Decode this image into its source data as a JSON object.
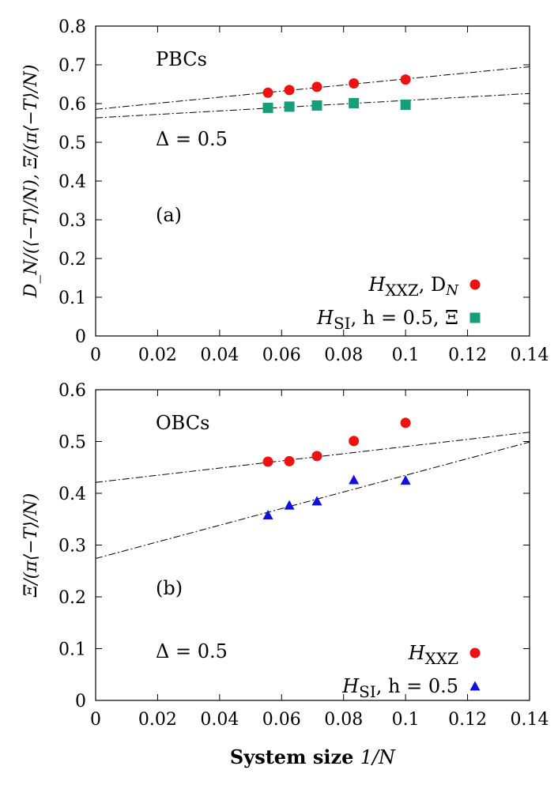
{
  "chart_data": [
    {
      "id": "a",
      "type": "scatter",
      "ylabel": "D_N/(⟨−T⟩/N), Ξ/(π⟨−T⟩/N)",
      "xlim": [
        0,
        0.14
      ],
      "ylim": [
        0,
        0.8
      ],
      "xticks": [
        0,
        0.02,
        0.04,
        0.06,
        0.08,
        0.1,
        0.12,
        0.14
      ],
      "xtick_labels": [
        "0",
        "0.02",
        "0.04",
        "0.06",
        "0.08",
        "0.1",
        "0.12",
        "0.14"
      ],
      "yticks": [
        0,
        0.1,
        0.2,
        0.3,
        0.4,
        0.5,
        0.6,
        0.7,
        0.8
      ],
      "ytick_labels": [
        "0",
        "0.1",
        "0.2",
        "0.3",
        "0.4",
        "0.5",
        "0.6",
        "0.7",
        "0.8"
      ],
      "annotations": [
        "PBCs",
        "Δ = 0.5",
        "(a)"
      ],
      "legend_position": "bottom-right",
      "series": [
        {
          "name": "Ĥ_XXZ, D_N",
          "marker": "circle",
          "color": "#ee1111",
          "x": [
            0.0556,
            0.0625,
            0.0714,
            0.0833,
            0.1
          ],
          "y": [
            0.628,
            0.635,
            0.643,
            0.652,
            0.662
          ]
        },
        {
          "name": "Ĥ_SI, h = 0.5, Ξ",
          "marker": "square",
          "color": "#159e78",
          "x": [
            0.0556,
            0.0625,
            0.0714,
            0.0833,
            0.1
          ],
          "y": [
            0.589,
            0.592,
            0.595,
            0.601,
            0.597
          ]
        }
      ],
      "fits": [
        {
          "x": [
            0,
            0.14
          ],
          "y": [
            0.585,
            0.695
          ]
        },
        {
          "x": [
            0,
            0.14
          ],
          "y": [
            0.563,
            0.626
          ]
        }
      ],
      "legend": {
        "items": [
          {
            "math": "H",
            "sub": "XXZ",
            "tail": ", D",
            "tail_sub": "N"
          },
          {
            "math": "H",
            "sub": "SI",
            "tail": ", h = 0.5, Ξ",
            "tail_sub": ""
          }
        ]
      }
    },
    {
      "id": "b",
      "type": "scatter",
      "xlabel_bold": "System size",
      "xlabel_math": "1/N",
      "ylabel": "Ξ/(π⟨−T⟩/N)",
      "xlim": [
        0,
        0.14
      ],
      "ylim": [
        0,
        0.6
      ],
      "xticks": [
        0,
        0.02,
        0.04,
        0.06,
        0.08,
        0.1,
        0.12,
        0.14
      ],
      "xtick_labels": [
        "0",
        "0.02",
        "0.04",
        "0.06",
        "0.08",
        "0.1",
        "0.12",
        "0.14"
      ],
      "yticks": [
        0,
        0.1,
        0.2,
        0.3,
        0.4,
        0.5,
        0.6
      ],
      "ytick_labels": [
        "0",
        "0.1",
        "0.2",
        "0.3",
        "0.4",
        "0.5",
        "0.6"
      ],
      "annotations": [
        "OBCs",
        "(b)",
        "Δ = 0.5"
      ],
      "legend_position": "bottom-right",
      "series": [
        {
          "name": "Ĥ_XXZ",
          "marker": "circle",
          "color": "#ee1111",
          "x": [
            0.0556,
            0.0625,
            0.0714,
            0.0833,
            0.1
          ],
          "y": [
            0.461,
            0.462,
            0.472,
            0.501,
            0.536
          ]
        },
        {
          "name": "Ĥ_SI, h = 0.5",
          "marker": "triangle",
          "color": "#1111dd",
          "x": [
            0.0556,
            0.0625,
            0.0714,
            0.0833,
            0.1
          ],
          "y": [
            0.358,
            0.377,
            0.385,
            0.426,
            0.425
          ]
        }
      ],
      "fits": [
        {
          "x": [
            0,
            0.14
          ],
          "y": [
            0.421,
            0.518
          ]
        },
        {
          "x": [
            0,
            0.14
          ],
          "y": [
            0.274,
            0.499
          ]
        }
      ],
      "legend": {
        "items": [
          {
            "math": "H",
            "sub": "XXZ",
            "tail": "",
            "tail_sub": ""
          },
          {
            "math": "H",
            "sub": "SI",
            "tail": ",  h = 0.5",
            "tail_sub": ""
          }
        ]
      }
    }
  ]
}
